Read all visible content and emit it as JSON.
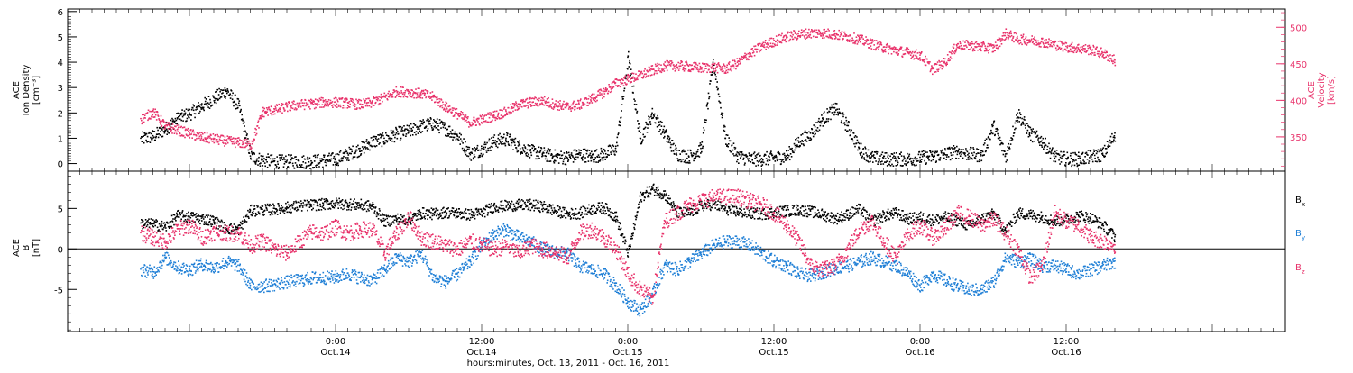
{
  "colors": {
    "black": "#000000",
    "red": "#e8336b",
    "blue": "#1f7fd6",
    "axis": "#000000"
  },
  "chart_data": [
    {
      "type": "scatter",
      "panel": "top",
      "ylabel_lines": [
        "ACE",
        "Ion Density",
        "[cm⁻³]"
      ],
      "y2label_lines": [
        "ACE",
        "Velocity",
        "[km/s]"
      ],
      "ylim": [
        -0.3,
        6.1
      ],
      "y_ticks": [
        0,
        1,
        2,
        3,
        4,
        5,
        6
      ],
      "y2lim": [
        303,
        525
      ],
      "y2_ticks": [
        350,
        400,
        450,
        500
      ],
      "grid": false,
      "series": [
        {
          "key": "density",
          "axis": "left",
          "color": "black",
          "x": [
            -16,
            -15,
            -14,
            -13,
            -12,
            -11,
            -10,
            -9,
            -8,
            -7,
            -6,
            -5,
            -4,
            -3,
            -2,
            -1,
            0,
            1,
            2,
            3,
            4,
            5,
            6,
            7,
            8,
            9,
            10,
            11,
            12,
            13,
            14,
            15,
            16,
            17,
            18,
            19,
            20,
            21,
            22,
            23,
            24,
            25,
            26,
            27,
            28,
            29,
            30,
            31,
            32,
            33,
            34,
            35,
            36,
            37,
            38,
            39,
            40,
            41,
            42,
            43,
            44,
            45,
            46,
            47,
            48,
            49,
            50,
            51,
            52,
            53,
            54,
            55,
            56,
            57,
            58,
            59,
            60,
            61,
            62,
            63,
            64
          ],
          "y": [
            1.0,
            1.1,
            1.4,
            1.8,
            2.0,
            2.3,
            2.6,
            2.9,
            2.3,
            0.3,
            0.15,
            0.1,
            0.1,
            0.1,
            0.1,
            0.15,
            0.2,
            0.4,
            0.6,
            0.9,
            1.0,
            1.2,
            1.3,
            1.5,
            1.6,
            1.4,
            1.1,
            0.4,
            0.6,
            0.9,
            1.0,
            0.7,
            0.5,
            0.4,
            0.3,
            0.25,
            0.4,
            0.3,
            0.4,
            0.6,
            4.2,
            1.0,
            2.0,
            1.2,
            0.4,
            0.3,
            0.6,
            4.0,
            1.0,
            0.3,
            0.2,
            0.2,
            0.25,
            0.3,
            0.9,
            1.2,
            1.8,
            2.2,
            1.5,
            0.6,
            0.25,
            0.2,
            0.2,
            0.2,
            0.25,
            0.3,
            0.4,
            0.5,
            0.4,
            0.35,
            1.5,
            0.3,
            2.0,
            1.2,
            0.9,
            0.3,
            0.2,
            0.2,
            0.3,
            0.4,
            1.2
          ]
        },
        {
          "key": "velocity",
          "axis": "right",
          "color": "red",
          "x": [
            -16,
            -15,
            -14,
            -13,
            -12,
            -11,
            -10,
            -9,
            -8,
            -7,
            -6,
            -5,
            -4,
            -3,
            -2,
            -1,
            0,
            1,
            2,
            3,
            4,
            5,
            6,
            7,
            8,
            9,
            10,
            11,
            12,
            13,
            14,
            15,
            16,
            17,
            18,
            19,
            20,
            21,
            22,
            23,
            24,
            25,
            26,
            27,
            28,
            29,
            30,
            31,
            32,
            33,
            34,
            35,
            36,
            37,
            38,
            39,
            40,
            41,
            42,
            43,
            44,
            45,
            46,
            47,
            48,
            49,
            50,
            51,
            52,
            53,
            54,
            55,
            56,
            57,
            58,
            59,
            60,
            61,
            62,
            63,
            64
          ],
          "y": [
            375,
            385,
            365,
            360,
            355,
            350,
            348,
            345,
            343,
            340,
            385,
            388,
            392,
            395,
            396,
            398,
            398,
            397,
            395,
            398,
            405,
            413,
            412,
            410,
            405,
            392,
            382,
            370,
            375,
            380,
            385,
            395,
            398,
            400,
            395,
            392,
            395,
            403,
            412,
            424,
            430,
            435,
            442,
            448,
            448,
            447,
            445,
            446,
            444,
            452,
            465,
            475,
            482,
            488,
            491,
            493,
            493,
            491,
            488,
            484,
            478,
            473,
            469,
            466,
            462,
            443,
            453,
            476,
            476,
            474,
            472,
            492,
            485,
            483,
            481,
            477,
            474,
            472,
            470,
            465,
            455
          ]
        }
      ]
    },
    {
      "type": "scatter",
      "panel": "bottom",
      "ylabel_lines": [
        "ACE",
        "B",
        "[nT]"
      ],
      "ylim": [
        -10.2,
        9.6
      ],
      "y_ticks": [
        -5,
        0,
        5
      ],
      "zero_line": true,
      "grid": false,
      "legend_position": "right",
      "series": [
        {
          "key": "bx",
          "name": "B",
          "sub": "x",
          "color": "black",
          "x": [
            -16,
            -15,
            -14,
            -13,
            -12,
            -11,
            -10,
            -9,
            -8,
            -7,
            -6,
            -5,
            -4,
            -3,
            -2,
            -1,
            0,
            1,
            2,
            3,
            4,
            5,
            6,
            7,
            8,
            9,
            10,
            11,
            12,
            13,
            14,
            15,
            16,
            17,
            18,
            19,
            20,
            21,
            22,
            23,
            24,
            25,
            26,
            27,
            28,
            29,
            30,
            31,
            32,
            33,
            34,
            35,
            36,
            37,
            38,
            39,
            40,
            41,
            42,
            43,
            44,
            45,
            46,
            47,
            48,
            49,
            50,
            51,
            52,
            53,
            54,
            55,
            56,
            57,
            58,
            59,
            60,
            61,
            62,
            63,
            64
          ],
          "y": [
            3.2,
            3.1,
            2.8,
            4.2,
            4.0,
            3.8,
            3.5,
            2.6,
            2.5,
            4.8,
            4.9,
            5.0,
            5.2,
            5.4,
            5.5,
            5.6,
            5.7,
            5.6,
            5.5,
            5.3,
            3.5,
            3.8,
            3.7,
            4.5,
            4.4,
            4.6,
            4.5,
            4.3,
            4.6,
            5.3,
            5.4,
            5.5,
            5.5,
            5.3,
            4.8,
            4.4,
            4.5,
            5.0,
            5.2,
            4.0,
            -0.5,
            6.5,
            7.5,
            6.8,
            4.6,
            4.5,
            5.4,
            5.6,
            5.0,
            4.7,
            4.5,
            4.4,
            4.6,
            4.8,
            4.9,
            4.7,
            4.3,
            3.8,
            4.3,
            5.0,
            3.5,
            4.2,
            4.5,
            3.8,
            4.0,
            3.6,
            4.0,
            3.6,
            2.9,
            3.8,
            4.4,
            2.3,
            4.5,
            4.3,
            4.0,
            3.5,
            3.8,
            4.2,
            3.9,
            3.0,
            1.5
          ]
        },
        {
          "key": "by",
          "name": "B",
          "sub": "y",
          "color": "blue",
          "x": [
            -16,
            -15,
            -14,
            -13,
            -12,
            -11,
            -10,
            -9,
            -8,
            -7,
            -6,
            -5,
            -4,
            -3,
            -2,
            -1,
            0,
            1,
            2,
            3,
            4,
            5,
            6,
            7,
            8,
            9,
            10,
            11,
            12,
            13,
            14,
            15,
            16,
            17,
            18,
            19,
            20,
            21,
            22,
            23,
            24,
            25,
            26,
            27,
            28,
            29,
            30,
            31,
            32,
            33,
            34,
            35,
            36,
            37,
            38,
            39,
            40,
            41,
            42,
            43,
            44,
            45,
            46,
            47,
            48,
            49,
            50,
            51,
            52,
            53,
            54,
            55,
            56,
            57,
            58,
            59,
            60,
            61,
            62,
            63,
            64
          ],
          "y": [
            -2.5,
            -2.8,
            -1.0,
            -2.2,
            -2.5,
            -1.8,
            -2.3,
            -1.5,
            -2.0,
            -4.5,
            -4.5,
            -4.3,
            -4.0,
            -3.8,
            -3.5,
            -3.5,
            -3.4,
            -3.0,
            -3.5,
            -3.8,
            -2.5,
            -1.0,
            -1.5,
            -0.5,
            -3.5,
            -4.0,
            -3.0,
            -1.5,
            0.5,
            2.0,
            2.5,
            1.5,
            1.0,
            0.0,
            -0.3,
            -0.5,
            -2.0,
            -2.5,
            -3.0,
            -4.5,
            -6.5,
            -7.5,
            -5.5,
            -2.0,
            -2.5,
            -1.5,
            -0.5,
            0.5,
            1.0,
            1.0,
            0.5,
            -0.5,
            -1.5,
            -2.0,
            -3.0,
            -3.2,
            -2.8,
            -2.3,
            -2.0,
            -1.5,
            -1.0,
            -1.5,
            -2.0,
            -3.0,
            -4.5,
            -3.0,
            -3.8,
            -4.5,
            -5.0,
            -5.0,
            -4.0,
            -1.0,
            -1.5,
            -1.2,
            -2.0,
            -2.0,
            -2.5,
            -3.0,
            -2.5,
            -2.0,
            -1.5
          ]
        },
        {
          "key": "bz",
          "name": "B",
          "sub": "z",
          "color": "red",
          "x": [
            -16,
            -15,
            -14,
            -13,
            -12,
            -11,
            -10,
            -9,
            -8,
            -7,
            -6,
            -5,
            -4,
            -3,
            -2,
            -1,
            0,
            1,
            2,
            3,
            4,
            5,
            6,
            7,
            8,
            9,
            10,
            11,
            12,
            13,
            14,
            15,
            16,
            17,
            18,
            19,
            20,
            21,
            22,
            23,
            24,
            25,
            26,
            27,
            28,
            29,
            30,
            31,
            32,
            33,
            34,
            35,
            36,
            37,
            38,
            39,
            40,
            41,
            42,
            43,
            44,
            45,
            46,
            47,
            48,
            49,
            50,
            51,
            52,
            53,
            54,
            55,
            56,
            57,
            58,
            59,
            60,
            61,
            62,
            63,
            64
          ],
          "y": [
            2.0,
            1.5,
            1.0,
            2.5,
            3.0,
            1.5,
            2.2,
            2.0,
            2.0,
            0.5,
            1.0,
            0.0,
            -0.5,
            1.0,
            2.2,
            2.0,
            2.8,
            2.0,
            2.5,
            2.5,
            -0.5,
            2.0,
            4.0,
            1.5,
            1.0,
            0.5,
            0.0,
            1.0,
            0.5,
            0.0,
            0.5,
            -0.5,
            0.5,
            0.0,
            -0.3,
            -1.0,
            2.0,
            2.5,
            1.5,
            0.0,
            -3.0,
            -5.0,
            -6.0,
            3.5,
            4.5,
            5.5,
            6.0,
            6.5,
            6.5,
            6.5,
            6.0,
            5.5,
            4.5,
            3.0,
            1.0,
            -2.0,
            -2.5,
            -2.0,
            0.0,
            2.5,
            3.5,
            1.0,
            -1.0,
            2.0,
            3.0,
            1.5,
            2.5,
            4.5,
            4.0,
            3.0,
            3.8,
            2.0,
            0.0,
            -3.5,
            -2.0,
            4.5,
            3.5,
            3.0,
            1.5,
            1.0,
            0.5
          ]
        }
      ]
    }
  ],
  "xaxis": {
    "xlim": [
      -22,
      78
    ],
    "xlabel": "hours:minutes, Oct. 13, 2011 - Oct. 16, 2011",
    "ticks": [
      {
        "x": 0,
        "time": "0:00",
        "date": "Oct.14"
      },
      {
        "x": 12,
        "time": "12:00",
        "date": "Oct.14"
      },
      {
        "x": 24,
        "time": "0:00",
        "date": "Oct.15"
      },
      {
        "x": 36,
        "time": "12:00",
        "date": "Oct.15"
      },
      {
        "x": 48,
        "time": "0:00",
        "date": "Oct.16"
      },
      {
        "x": 60,
        "time": "12:00",
        "date": "Oct.16"
      }
    ]
  }
}
